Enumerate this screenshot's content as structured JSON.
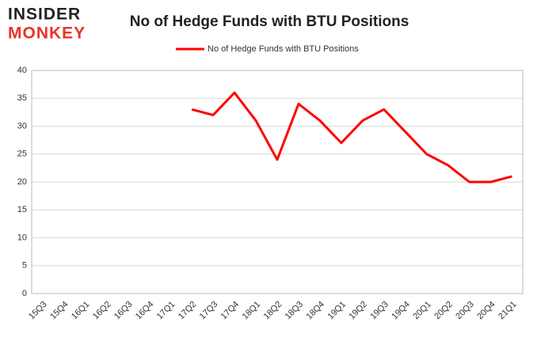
{
  "logo": {
    "line1": "INSIDER",
    "line2": "MONKEY"
  },
  "chart_data": {
    "type": "line",
    "title": "No of Hedge Funds with BTU Positions",
    "categories": [
      "15Q3",
      "15Q4",
      "16Q1",
      "16Q2",
      "16Q3",
      "16Q4",
      "17Q1",
      "17Q2",
      "17Q3",
      "17Q4",
      "18Q1",
      "18Q2",
      "18Q3",
      "18Q4",
      "19Q1",
      "19Q2",
      "19Q3",
      "19Q4",
      "20Q1",
      "20Q2",
      "20Q3",
      "20Q4",
      "21Q1"
    ],
    "series": [
      {
        "name": "No of Hedge Funds with BTU Positions",
        "color": "#ff0000",
        "values": [
          null,
          null,
          null,
          null,
          null,
          null,
          null,
          33,
          32,
          36,
          31,
          24,
          34,
          31,
          27,
          31,
          33,
          29,
          25,
          23,
          20,
          20,
          21
        ]
      }
    ],
    "ylim": [
      0,
      40
    ],
    "yticks": [
      0,
      5,
      10,
      15,
      20,
      25,
      30,
      35,
      40
    ],
    "grid": true,
    "legend": "top"
  }
}
